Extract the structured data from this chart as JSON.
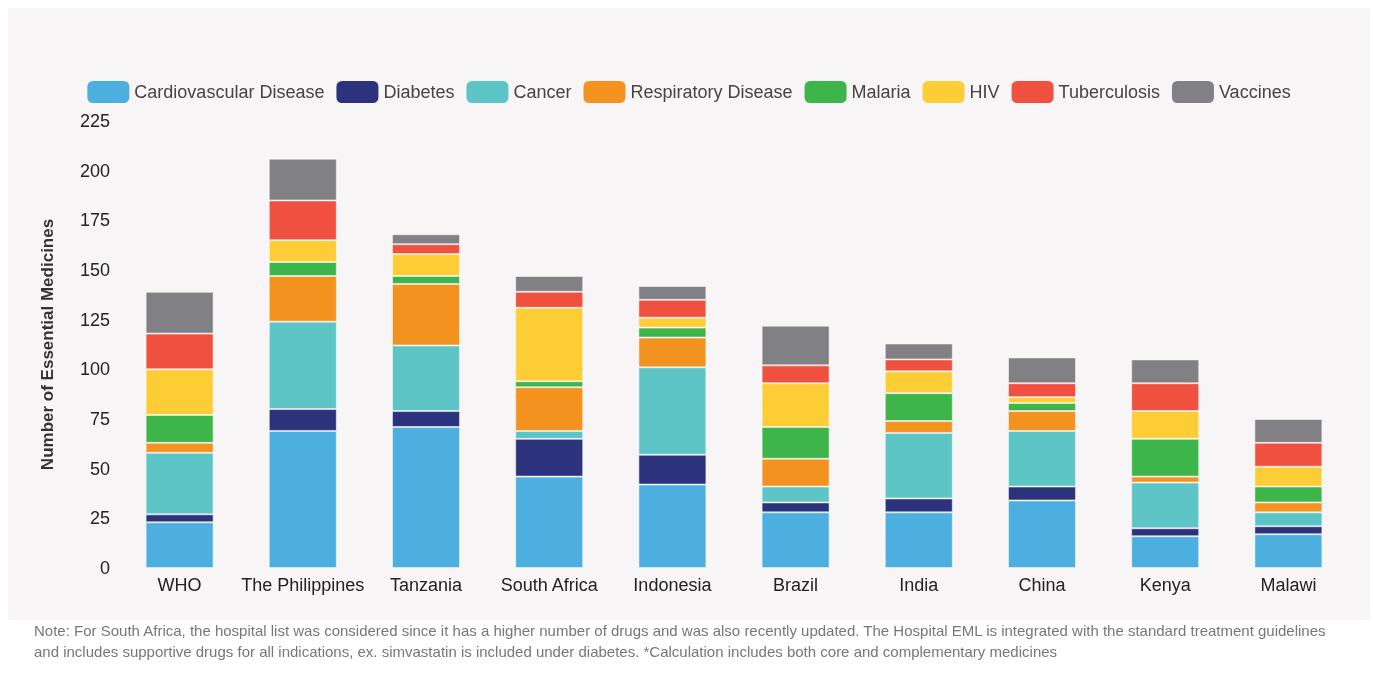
{
  "chart_data": {
    "type": "bar",
    "stacked": true,
    "ylabel": "Number of Essential Medicines",
    "categories": [
      "WHO",
      "The Philippines",
      "Tanzania",
      "South Africa",
      "Indonesia",
      "Brazil",
      "India",
      "China",
      "Kenya",
      "Malawi"
    ],
    "series": [
      {
        "name": "Cardiovascular Disease",
        "color": "#4daee0",
        "values": [
          23,
          69,
          71,
          46,
          42,
          28,
          28,
          34,
          16,
          17
        ]
      },
      {
        "name": "Diabetes",
        "color": "#2d327c",
        "values": [
          4,
          11,
          8,
          19,
          15,
          5,
          7,
          7,
          4,
          4
        ]
      },
      {
        "name": "Cancer",
        "color": "#5ec5c6",
        "values": [
          31,
          44,
          33,
          4,
          44,
          8,
          33,
          28,
          23,
          7
        ]
      },
      {
        "name": "Respiratory Disease",
        "color": "#f4921f",
        "values": [
          5,
          23,
          31,
          22,
          15,
          14,
          6,
          10,
          3,
          5
        ]
      },
      {
        "name": "Malaria",
        "color": "#3db54a",
        "values": [
          14,
          7,
          4,
          3,
          5,
          16,
          14,
          4,
          19,
          8
        ]
      },
      {
        "name": "HIV",
        "color": "#fdcd36",
        "values": [
          23,
          11,
          11,
          37,
          5,
          22,
          11,
          3,
          14,
          10
        ]
      },
      {
        "name": "Tuberculosis",
        "color": "#ef503f",
        "values": [
          18,
          20,
          5,
          8,
          9,
          9,
          6,
          7,
          14,
          12
        ]
      },
      {
        "name": "Vaccines",
        "color": "#818085",
        "values": [
          21,
          21,
          5,
          8,
          7,
          20,
          8,
          13,
          12,
          12
        ]
      }
    ],
    "ylim": [
      0,
      225
    ],
    "yticks": [
      0,
      25,
      50,
      75,
      100,
      125,
      150,
      175,
      200,
      225
    ],
    "grid": false,
    "legend": "top",
    "annotations": [
      "Note: For South Africa, the hospital list was considered since it has a higher number of drugs and was also recently updated. The Hospital EML is integrated with the standard treatment guidelines and includes supportive drugs for all indications, ex. simvastatin is included under diabetes. *Calculation includes both core and complementary medicines"
    ]
  }
}
